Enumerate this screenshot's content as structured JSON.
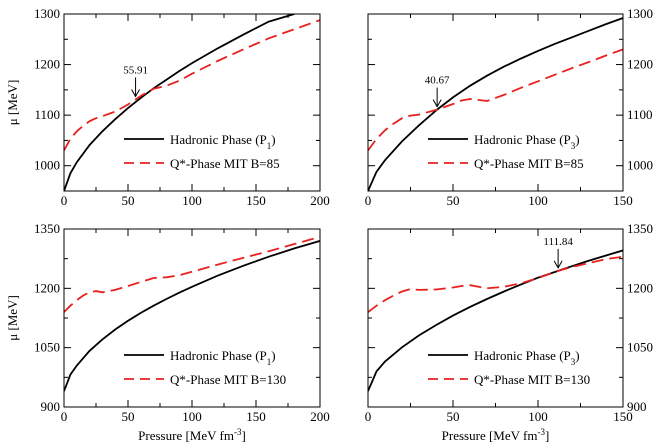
{
  "chart_data": [
    {
      "type": "line",
      "panel": "top-left",
      "xlim": [
        0,
        200
      ],
      "ylim": [
        950,
        1300
      ],
      "xticks": [
        "0",
        "50",
        "100",
        "150",
        "200"
      ],
      "yticks": [
        "1000",
        "1100",
        "1200",
        "1300"
      ],
      "ytick_values": [
        1000,
        1100,
        1200,
        1300
      ],
      "yaxis_side": "left",
      "xlabel": "",
      "ylabel": "μ [MeV]",
      "annotation": {
        "text": "55.91",
        "x": 55.91,
        "y": 1131
      },
      "legend_position": "bottom-right",
      "series": [
        {
          "name": "Hadronic Phase (P",
          "name_sub": "1",
          "name_suffix": ")",
          "color": "#000000",
          "dash": "solid",
          "x": [
            0,
            5,
            10,
            20,
            30,
            40,
            50,
            60,
            70,
            80,
            90,
            100,
            120,
            140,
            160,
            180
          ],
          "y": [
            950,
            985,
            1007,
            1041,
            1068,
            1092,
            1114,
            1134,
            1153,
            1170,
            1187,
            1203,
            1232,
            1259,
            1285,
            1300
          ]
        },
        {
          "name": "Q*-Phase MIT B=85",
          "color": "#e8201e",
          "dash": "dashed",
          "x": [
            0,
            5,
            10,
            15,
            20,
            25,
            30,
            40,
            50,
            55.91,
            60,
            70,
            80,
            90,
            100,
            120,
            140,
            160,
            180,
            200
          ],
          "y": [
            1030,
            1053,
            1068,
            1079,
            1088,
            1094,
            1098,
            1107,
            1121,
            1131,
            1138,
            1152,
            1158,
            1168,
            1182,
            1207,
            1230,
            1252,
            1270,
            1288
          ]
        }
      ]
    },
    {
      "type": "line",
      "panel": "top-right",
      "xlim": [
        0,
        150
      ],
      "ylim": [
        950,
        1300
      ],
      "xticks": [
        "0",
        "50",
        "100",
        "150"
      ],
      "yticks": [
        "1000",
        "1100",
        "1200",
        "1300"
      ],
      "ytick_values": [
        1000,
        1100,
        1200,
        1300
      ],
      "yaxis_side": "right",
      "xlabel": "",
      "ylabel": "",
      "annotation": {
        "text": "40.67",
        "x": 40.67,
        "y": 1111
      },
      "legend_position": "bottom-right",
      "series": [
        {
          "name": "Hadronic Phase (P",
          "name_sub": "3",
          "name_suffix": ")",
          "color": "#000000",
          "dash": "solid",
          "x": [
            0,
            5,
            10,
            20,
            30,
            40.67,
            50,
            60,
            70,
            80,
            90,
            100,
            110,
            120,
            130,
            140,
            150
          ],
          "y": [
            950,
            988,
            1011,
            1048,
            1080,
            1111,
            1135,
            1158,
            1178,
            1196,
            1212,
            1227,
            1241,
            1254,
            1267,
            1280,
            1292
          ]
        },
        {
          "name": "Q*-Phase MIT B=85",
          "color": "#e8201e",
          "dash": "dashed",
          "x": [
            0,
            5,
            10,
            15,
            20,
            25,
            30,
            40.67,
            50,
            55,
            60,
            65,
            70,
            80,
            90,
            100,
            110,
            120,
            130,
            140,
            150
          ],
          "y": [
            1030,
            1053,
            1070,
            1083,
            1094,
            1099,
            1101,
            1111,
            1122,
            1129,
            1132,
            1130,
            1128,
            1140,
            1154,
            1167,
            1180,
            1193,
            1205,
            1218,
            1230
          ]
        }
      ]
    },
    {
      "type": "line",
      "panel": "bottom-left",
      "xlim": [
        0,
        200
      ],
      "ylim": [
        900,
        1350
      ],
      "xticks": [
        "0",
        "50",
        "100",
        "150",
        "200"
      ],
      "yticks": [
        "900",
        "1050",
        "1200",
        "1350"
      ],
      "ytick_values": [
        900,
        1050,
        1200,
        1350
      ],
      "yaxis_side": "left",
      "xlabel": "Pressure [MeV fm",
      "xlabel_sup": "-3",
      "xlabel_suffix": "]",
      "ylabel": "μ [MeV]",
      "legend_position": "bottom-right",
      "series": [
        {
          "name": "Hadronic Phase (P",
          "name_sub": "1",
          "name_suffix": ")",
          "color": "#000000",
          "dash": "solid",
          "x": [
            0,
            5,
            10,
            20,
            30,
            40,
            50,
            60,
            70,
            80,
            90,
            100,
            120,
            140,
            160,
            180,
            200
          ],
          "y": [
            940,
            982,
            1005,
            1042,
            1071,
            1096,
            1118,
            1138,
            1156,
            1173,
            1189,
            1204,
            1232,
            1257,
            1280,
            1301,
            1320
          ]
        },
        {
          "name": "Q*-Phase MIT B=130",
          "color": "#e8201e",
          "dash": "dashed",
          "x": [
            0,
            5,
            10,
            15,
            20,
            25,
            30,
            40,
            50,
            60,
            70,
            80,
            90,
            100,
            120,
            140,
            160,
            180,
            200
          ],
          "y": [
            1140,
            1156,
            1170,
            1182,
            1190,
            1193,
            1190,
            1196,
            1206,
            1216,
            1226,
            1228,
            1233,
            1242,
            1260,
            1277,
            1294,
            1312,
            1330
          ]
        }
      ]
    },
    {
      "type": "line",
      "panel": "bottom-right",
      "xlim": [
        0,
        150
      ],
      "ylim": [
        900,
        1350
      ],
      "xticks": [
        "0",
        "50",
        "100",
        "150"
      ],
      "yticks": [
        "900",
        "1050",
        "1200",
        "1350"
      ],
      "ytick_values": [
        900,
        1050,
        1200,
        1350
      ],
      "yaxis_side": "right",
      "xlabel": "Pressure [MeV fm",
      "xlabel_sup": "-3",
      "xlabel_suffix": "]",
      "ylabel": "",
      "annotation": {
        "text": "111.84",
        "x": 111.84,
        "y": 1244
      },
      "legend_position": "bottom-right",
      "series": [
        {
          "name": "Hadronic Phase (P",
          "name_sub": "3",
          "name_suffix": ")",
          "color": "#000000",
          "dash": "solid",
          "x": [
            0,
            5,
            10,
            20,
            30,
            40,
            50,
            60,
            70,
            80,
            90,
            100,
            111.84,
            120,
            130,
            140,
            150
          ],
          "y": [
            940,
            990,
            1015,
            1051,
            1081,
            1107,
            1131,
            1153,
            1173,
            1192,
            1210,
            1227,
            1244,
            1256,
            1270,
            1283,
            1296
          ]
        },
        {
          "name": "Q*-Phase MIT B=130",
          "color": "#e8201e",
          "dash": "dashed",
          "x": [
            0,
            5,
            10,
            15,
            20,
            25,
            30,
            40,
            50,
            55,
            60,
            65,
            70,
            80,
            90,
            100,
            111.84,
            120,
            130,
            140,
            150
          ],
          "y": [
            1140,
            1156,
            1170,
            1182,
            1192,
            1198,
            1196,
            1197,
            1202,
            1206,
            1208,
            1204,
            1200,
            1204,
            1213,
            1226,
            1244,
            1254,
            1264,
            1274,
            1280
          ]
        }
      ]
    }
  ]
}
